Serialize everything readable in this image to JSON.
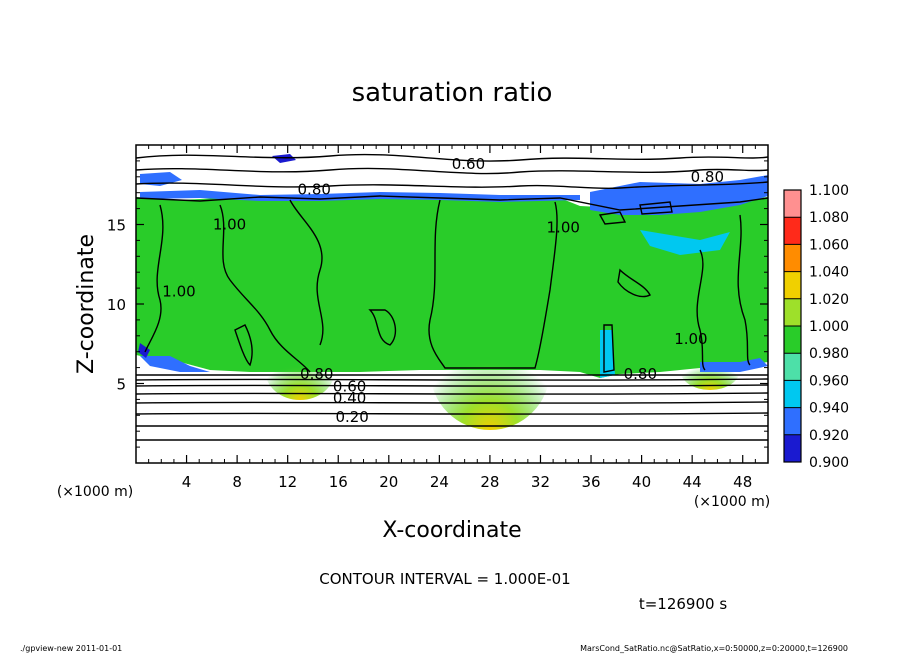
{
  "chart_data": {
    "type": "heatmap",
    "title": "saturation ratio",
    "xlabel": "X-coordinate",
    "ylabel": "Z-coordinate",
    "x_unit": "(×1000 m)",
    "y_unit": "(×1000 m)",
    "xlim": [
      0,
      50
    ],
    "ylim": [
      0,
      20
    ],
    "x_ticks": [
      4,
      8,
      12,
      16,
      20,
      24,
      28,
      32,
      36,
      40,
      44,
      48
    ],
    "y_ticks": [
      5,
      10,
      15
    ],
    "colorbar": {
      "levels": [
        "0.900",
        "0.920",
        "0.940",
        "0.960",
        "0.980",
        "1.000",
        "1.020",
        "1.040",
        "1.060",
        "1.080",
        "1.100"
      ],
      "colors": [
        "#6a0dad",
        "#1a1ad0",
        "#2f6fff",
        "#00c8f0",
        "#4de0a8",
        "#29cc29",
        "#9ee02a",
        "#f0d000",
        "#ff8c00",
        "#ff2a1a",
        "#ff9090"
      ]
    },
    "contour_labels": [
      {
        "text": "0.60",
        "x": 26.3,
        "z": 18.8
      },
      {
        "text": "0.80",
        "x": 14.1,
        "z": 17.2
      },
      {
        "text": "0.80",
        "x": 45.2,
        "z": 18.0
      },
      {
        "text": "1.00",
        "x": 7.4,
        "z": 15.0
      },
      {
        "text": "1.00",
        "x": 33.8,
        "z": 14.8
      },
      {
        "text": "1.00",
        "x": 3.4,
        "z": 10.8
      },
      {
        "text": "1.00",
        "x": 43.9,
        "z": 7.8
      },
      {
        "text": "0.80",
        "x": 14.3,
        "z": 5.6
      },
      {
        "text": "0.80",
        "x": 39.9,
        "z": 5.6
      },
      {
        "text": "0.60",
        "x": 16.9,
        "z": 4.8
      },
      {
        "text": "0.40",
        "x": 16.9,
        "z": 4.1
      },
      {
        "text": "0.20",
        "x": 17.1,
        "z": 2.9
      }
    ],
    "contour_interval": "CONTOUR INTERVAL = 1.000E-01",
    "time_label": "t=126900  s"
  },
  "footer": {
    "left": "./gpview-new   2011-01-01",
    "right": "MarsCond_SatRatio.nc@SatRatio,x=0:50000,z=0:20000,t=126900"
  }
}
